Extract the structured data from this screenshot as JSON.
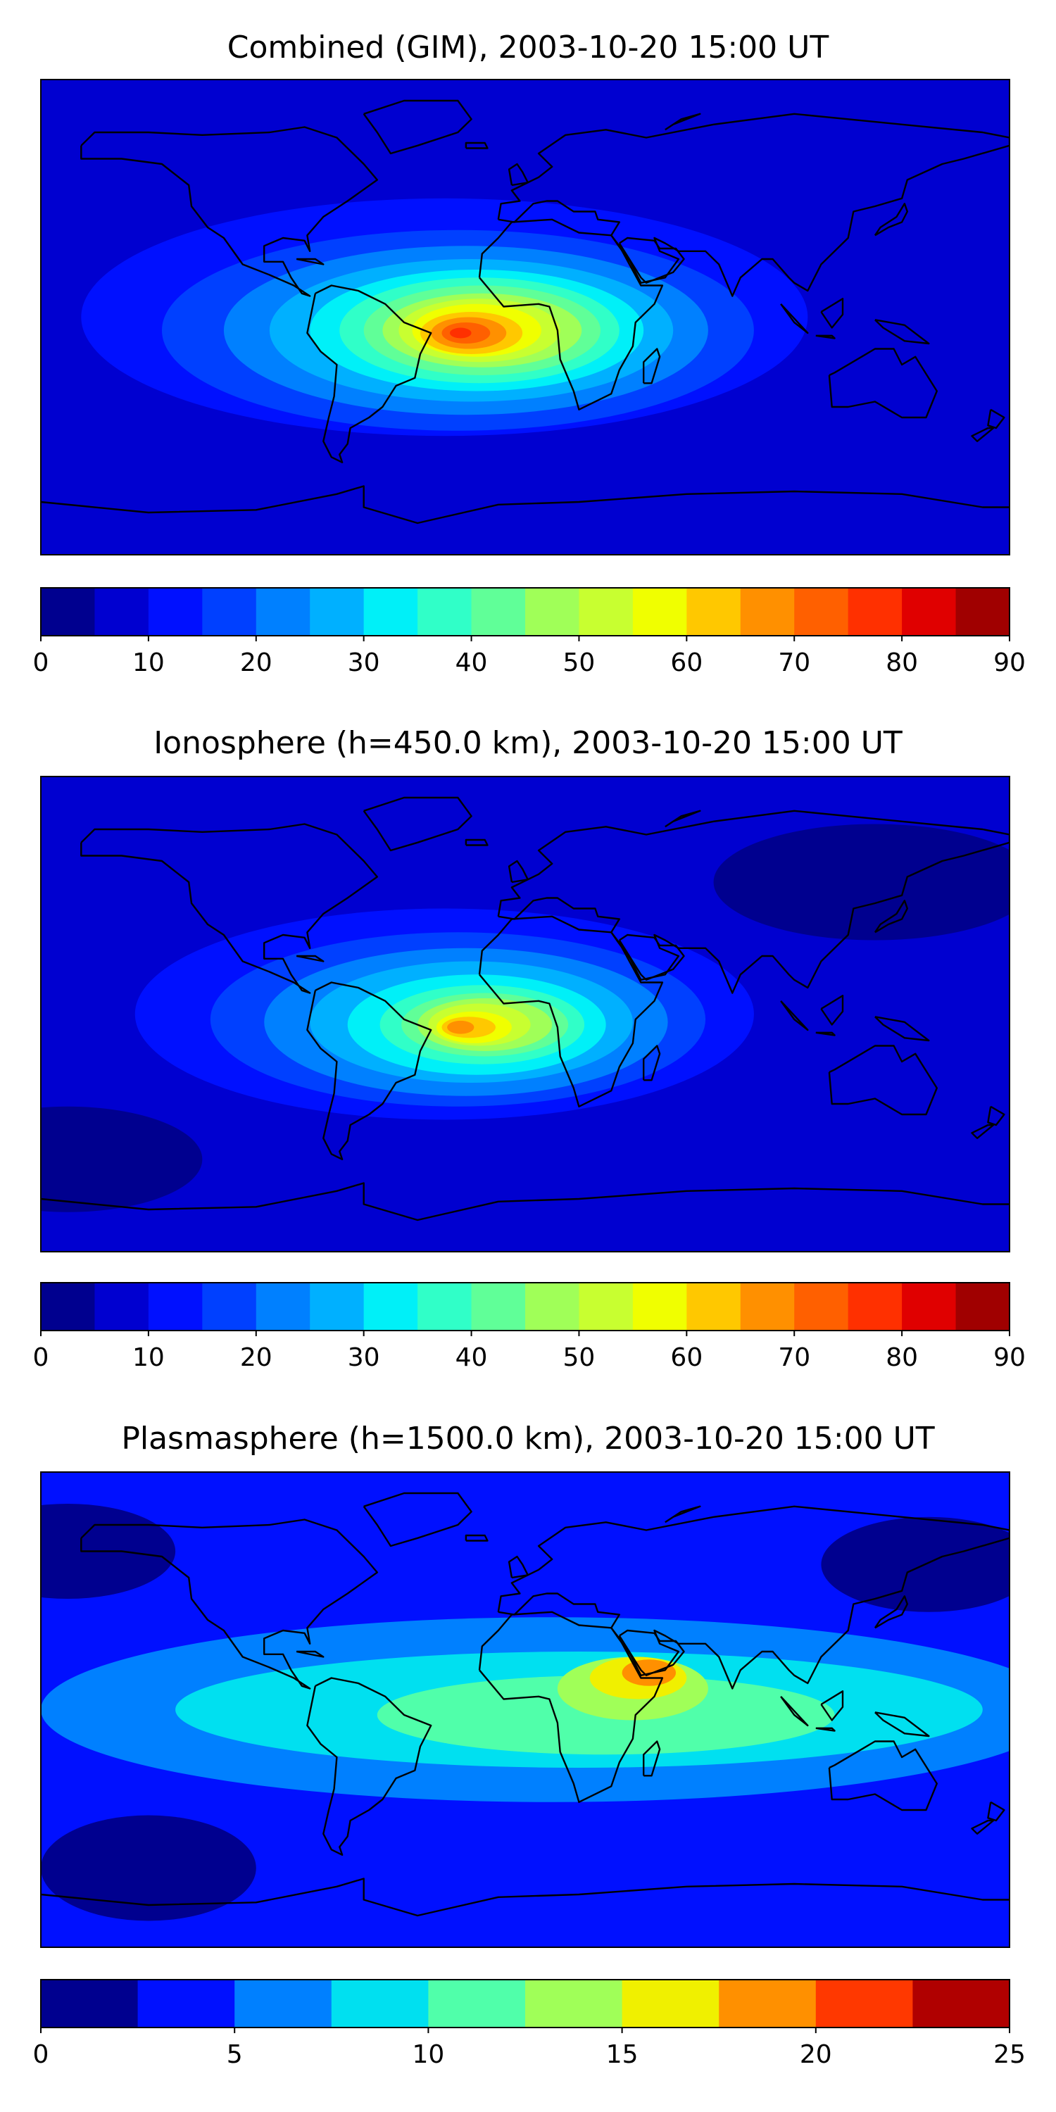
{
  "figure": {
    "panels": [
      {
        "id": "combined",
        "title": "Combined (GIM), 2003-10-20 15:00 UT",
        "colorbar": {
          "min": 0,
          "max": 90,
          "step": 5,
          "tick_labels": [
            "0",
            "10",
            "20",
            "30",
            "40",
            "50",
            "60",
            "70",
            "80",
            "90"
          ],
          "colors": [
            "#00008f",
            "#0000d0",
            "#0010ff",
            "#0040ff",
            "#0080ff",
            "#00b0ff",
            "#00f0f8",
            "#30ffc8",
            "#60ff98",
            "#a0ff58",
            "#c8ff30",
            "#f0ff00",
            "#ffc800",
            "#ff9000",
            "#ff6000",
            "#ff3000",
            "#e00000",
            "#a00000"
          ]
        },
        "map": {
          "background_level": 1,
          "blobs": [
            {
              "lon": -30,
              "lat": 0,
              "rx": 135,
              "ry": 45,
              "level": 2
            },
            {
              "lon": -25,
              "lat": -5,
              "rx": 110,
              "ry": 38,
              "level": 3
            },
            {
              "lon": -22,
              "lat": -5,
              "rx": 90,
              "ry": 32,
              "level": 4
            },
            {
              "lon": -20,
              "lat": -5,
              "rx": 75,
              "ry": 27,
              "level": 5
            },
            {
              "lon": -18,
              "lat": -5,
              "rx": 62,
              "ry": 23,
              "level": 6
            },
            {
              "lon": -17,
              "lat": -5,
              "rx": 52,
              "ry": 20,
              "level": 7
            },
            {
              "lon": -16,
              "lat": -5,
              "rx": 44,
              "ry": 17,
              "level": 8
            },
            {
              "lon": -16,
              "lat": -5,
              "rx": 37,
              "ry": 14,
              "level": 9
            },
            {
              "lon": -17,
              "lat": -5,
              "rx": 30,
              "ry": 12,
              "level": 10
            },
            {
              "lon": -18,
              "lat": -5,
              "rx": 24,
              "ry": 10,
              "level": 11
            },
            {
              "lon": -20,
              "lat": -6,
              "rx": 19,
              "ry": 8,
              "level": 12
            },
            {
              "lon": -21,
              "lat": -6,
              "rx": 14,
              "ry": 6,
              "level": 13
            },
            {
              "lon": -22,
              "lat": -6,
              "rx": 9,
              "ry": 4,
              "level": 14
            },
            {
              "lon": -24,
              "lat": -6,
              "rx": 4,
              "ry": 2,
              "level": 15
            }
          ]
        }
      },
      {
        "id": "ionosphere",
        "title": "Ionosphere  (h=450.0 km), 2003-10-20 15:00 UT",
        "colorbar": {
          "min": 0,
          "max": 90,
          "step": 5,
          "tick_labels": [
            "0",
            "10",
            "20",
            "30",
            "40",
            "50",
            "60",
            "70",
            "80",
            "90"
          ],
          "colors": [
            "#00008f",
            "#0000d0",
            "#0010ff",
            "#0040ff",
            "#0080ff",
            "#00b0ff",
            "#00f0f8",
            "#30ffc8",
            "#60ff98",
            "#a0ff58",
            "#c8ff30",
            "#f0ff00",
            "#ffc800",
            "#ff9000",
            "#ff6000",
            "#ff3000",
            "#e00000",
            "#a00000"
          ]
        },
        "map": {
          "background_level": 1,
          "blobs": [
            {
              "lon": 130,
              "lat": 50,
              "rx": 60,
              "ry": 22,
              "level": 0
            },
            {
              "lon": -170,
              "lat": -55,
              "rx": 50,
              "ry": 20,
              "level": 0
            },
            {
              "lon": -30,
              "lat": 0,
              "rx": 115,
              "ry": 40,
              "level": 2
            },
            {
              "lon": -25,
              "lat": -2,
              "rx": 92,
              "ry": 33,
              "level": 3
            },
            {
              "lon": -22,
              "lat": -3,
              "rx": 75,
              "ry": 28,
              "level": 4
            },
            {
              "lon": -20,
              "lat": -3,
              "rx": 60,
              "ry": 23,
              "level": 5
            },
            {
              "lon": -18,
              "lat": -4,
              "rx": 48,
              "ry": 19,
              "level": 6
            },
            {
              "lon": -16,
              "lat": -4,
              "rx": 38,
              "ry": 15,
              "level": 7
            },
            {
              "lon": -15,
              "lat": -4,
              "rx": 31,
              "ry": 12,
              "level": 8
            },
            {
              "lon": -15,
              "lat": -4,
              "rx": 25,
              "ry": 10,
              "level": 9
            },
            {
              "lon": -17,
              "lat": -4,
              "rx": 19,
              "ry": 8,
              "level": 10
            },
            {
              "lon": -19,
              "lat": -5,
              "rx": 14,
              "ry": 6,
              "level": 11
            },
            {
              "lon": -21,
              "lat": -5,
              "rx": 10,
              "ry": 4,
              "level": 12
            },
            {
              "lon": -24,
              "lat": -5,
              "rx": 5,
              "ry": 2.5,
              "level": 13
            }
          ]
        }
      },
      {
        "id": "plasmasphere",
        "title": "Plasmasphere (h=1500.0 km), 2003-10-20 15:00 UT",
        "colorbar": {
          "min": 0,
          "max": 25,
          "step": 2.5,
          "tick_labels": [
            "0",
            "5",
            "10",
            "15",
            "20",
            "25"
          ],
          "colors": [
            "#00008f",
            "#0010ff",
            "#0080ff",
            "#00e0f0",
            "#50ffaa",
            "#a0ff58",
            "#f0f000",
            "#ff9000",
            "#ff3800",
            "#b00000"
          ]
        },
        "map": {
          "background_level": 1,
          "blobs": [
            {
              "lon": -170,
              "lat": 60,
              "rx": 40,
              "ry": 18,
              "level": 0
            },
            {
              "lon": 150,
              "lat": 55,
              "rx": 40,
              "ry": 18,
              "level": 0
            },
            {
              "lon": -140,
              "lat": -60,
              "rx": 40,
              "ry": 20,
              "level": 0
            },
            {
              "lon": 10,
              "lat": 0,
              "rx": 190,
              "ry": 35,
              "level": 2
            },
            {
              "lon": 20,
              "lat": 0,
              "rx": 150,
              "ry": 22,
              "level": 3
            },
            {
              "lon": 30,
              "lat": -2,
              "rx": 85,
              "ry": 15,
              "level": 4
            },
            {
              "lon": 40,
              "lat": 8,
              "rx": 28,
              "ry": 12,
              "level": 5
            },
            {
              "lon": 42,
              "lat": 12,
              "rx": 18,
              "ry": 8,
              "level": 6
            },
            {
              "lon": 46,
              "lat": 14,
              "rx": 10,
              "ry": 5,
              "level": 7
            }
          ]
        }
      }
    ]
  }
}
